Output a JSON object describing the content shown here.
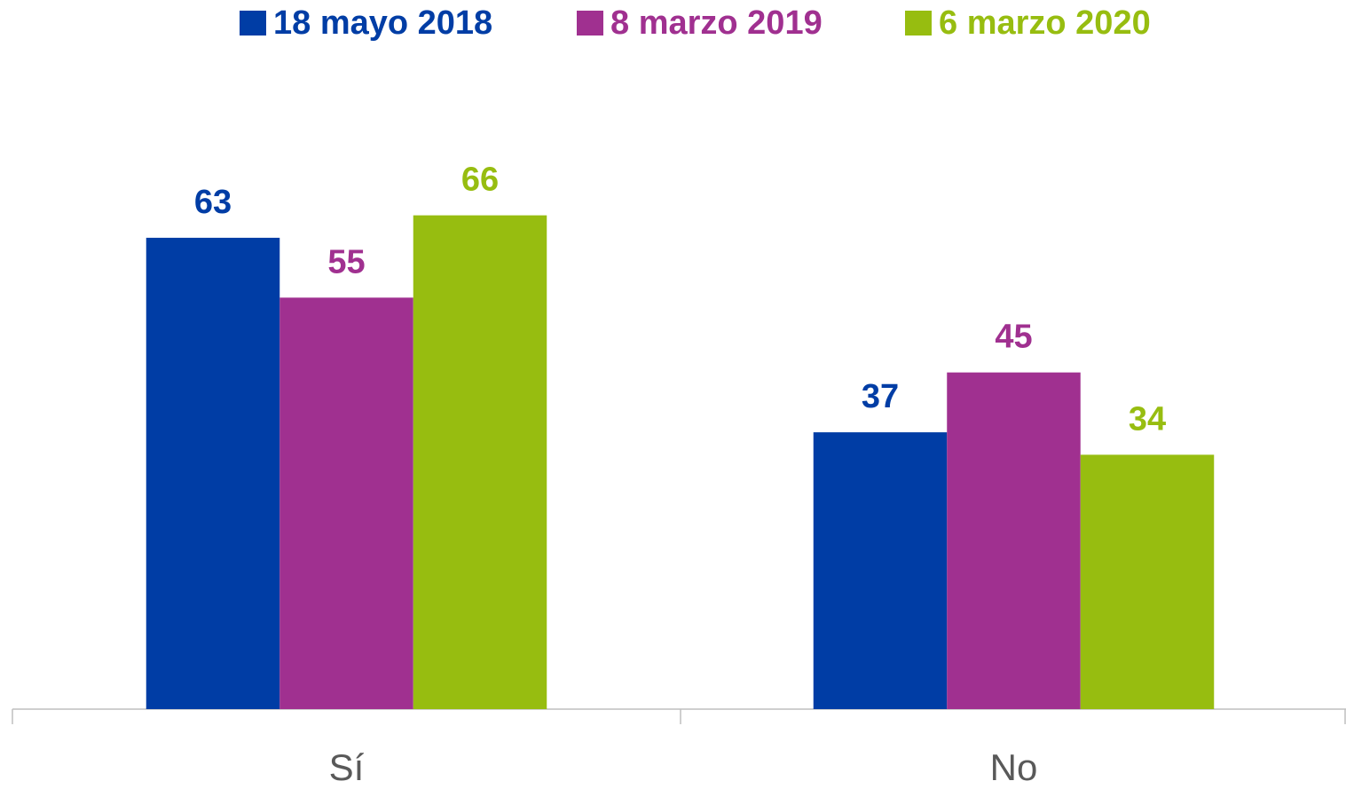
{
  "chart_data": {
    "type": "bar",
    "categories": [
      "Sí",
      "No"
    ],
    "series": [
      {
        "name": "18 mayo 2018",
        "color": "#003da5",
        "values": [
          63,
          37
        ]
      },
      {
        "name": "8 marzo 2019",
        "color": "#a03090",
        "values": [
          55,
          45
        ]
      },
      {
        "name": "6 marzo 2020",
        "color": "#97bd10",
        "values": [
          66,
          34
        ]
      }
    ]
  }
}
